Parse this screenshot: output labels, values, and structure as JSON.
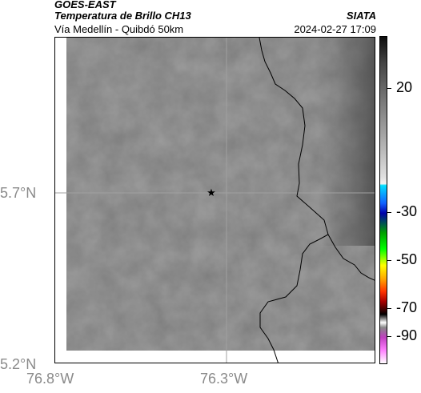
{
  "header": {
    "satellite": "GOES-EAST",
    "product": "Temperatura de Brillo CH13",
    "location": "Vía Medellín - Quibdó 50km",
    "organization": "SIATA",
    "datetime": "2024-02-27 17:09"
  },
  "axes": {
    "latitude_labels": [
      "5.7°N",
      "5.2°N"
    ],
    "longitude_labels": [
      "76.8°W",
      "76.3°W"
    ]
  },
  "colorbar": {
    "labels": [
      "20",
      "-30",
      "-50",
      "-70",
      "-90"
    ]
  },
  "colors": {
    "background": "#ffffff",
    "border": "#000000",
    "label_gray": "#8a8a8a",
    "marker": "#000000"
  },
  "icons": {
    "marker": "star-icon"
  }
}
